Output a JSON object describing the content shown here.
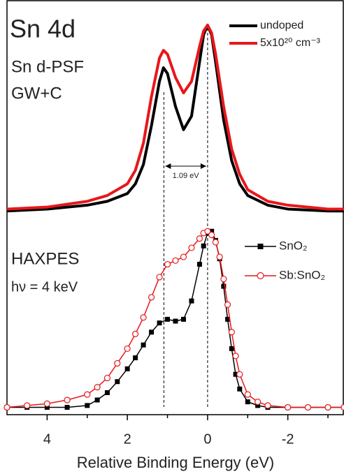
{
  "chart_data": [
    {
      "type": "line",
      "annotations": [
        "Sn 4d",
        "Sn d-PSF",
        "GW+C"
      ],
      "splitting": {
        "label": "1.09 eV",
        "from": 1.09,
        "to": 0
      },
      "x": [
        5,
        4,
        3,
        2.5,
        2,
        1.8,
        1.6,
        1.4,
        1.2,
        1.1,
        1.0,
        0.8,
        0.6,
        0.4,
        0.2,
        0.1,
        0,
        -0.1,
        -0.2,
        -0.4,
        -0.6,
        -0.8,
        -1,
        -1.5,
        -2,
        -3,
        -3.4
      ],
      "xlim": [
        5,
        -3.4
      ],
      "ylim": [
        0,
        1.1
      ],
      "legend": "upper right",
      "series": [
        {
          "name": "undoped",
          "color": "#000000",
          "values": [
            0.01,
            0.02,
            0.04,
            0.06,
            0.1,
            0.15,
            0.25,
            0.45,
            0.68,
            0.75,
            0.72,
            0.55,
            0.43,
            0.5,
            0.78,
            0.92,
            0.97,
            0.92,
            0.78,
            0.48,
            0.27,
            0.15,
            0.09,
            0.04,
            0.02,
            0.01,
            0.01
          ]
        },
        {
          "name": "5x10²⁰ cm⁻³",
          "color": "#e8171b",
          "values": [
            0.02,
            0.03,
            0.06,
            0.09,
            0.15,
            0.22,
            0.36,
            0.6,
            0.8,
            0.84,
            0.82,
            0.7,
            0.62,
            0.68,
            0.86,
            0.94,
            0.97,
            0.93,
            0.82,
            0.55,
            0.33,
            0.2,
            0.12,
            0.06,
            0.04,
            0.02,
            0.02
          ]
        }
      ]
    },
    {
      "type": "line",
      "annotations": [
        "HAXPES",
        "hν = 4 keV"
      ],
      "x": [
        5,
        4.5,
        4,
        3.5,
        3,
        2.75,
        2.5,
        2.25,
        2,
        1.8,
        1.6,
        1.4,
        1.2,
        1.0,
        0.8,
        0.6,
        0.4,
        0.2,
        0.1,
        0,
        -0.1,
        -0.2,
        -0.3,
        -0.4,
        -0.5,
        -0.6,
        -0.7,
        -0.8,
        -1,
        -1.25,
        -1.5,
        -2,
        -2.5,
        -3,
        -3.4
      ],
      "xlim": [
        5,
        -3.4
      ],
      "ylim": [
        0,
        1.1
      ],
      "xticks": [
        4,
        2,
        0,
        -2
      ],
      "xticks_minor": [
        3,
        1,
        -1,
        -3
      ],
      "xlabel": "Relative Binding Energy (eV)",
      "legend": "upper right",
      "series": [
        {
          "name": "SnO₂",
          "color": "#000000",
          "marker": "square",
          "values": [
            0.04,
            0.04,
            0.04,
            0.04,
            0.05,
            0.08,
            0.12,
            0.18,
            0.25,
            0.31,
            0.38,
            0.45,
            0.5,
            0.52,
            0.51,
            0.52,
            0.62,
            0.82,
            0.92,
            0.99,
            1.0,
            0.95,
            0.85,
            0.7,
            0.52,
            0.36,
            0.22,
            0.14,
            0.07,
            0.05,
            0.04,
            0.04,
            0.04,
            0.04,
            0.04
          ]
        },
        {
          "name": "Sb:SnO₂",
          "color": "#e8171b",
          "marker": "circle-open",
          "values": [
            0.04,
            0.05,
            0.06,
            0.08,
            0.11,
            0.15,
            0.2,
            0.28,
            0.36,
            0.44,
            0.53,
            0.64,
            0.75,
            0.82,
            0.84,
            0.86,
            0.91,
            0.96,
            0.99,
            1.0,
            0.98,
            0.94,
            0.86,
            0.74,
            0.6,
            0.45,
            0.32,
            0.22,
            0.11,
            0.07,
            0.05,
            0.04,
            0.04,
            0.04,
            0.04
          ]
        }
      ]
    }
  ]
}
